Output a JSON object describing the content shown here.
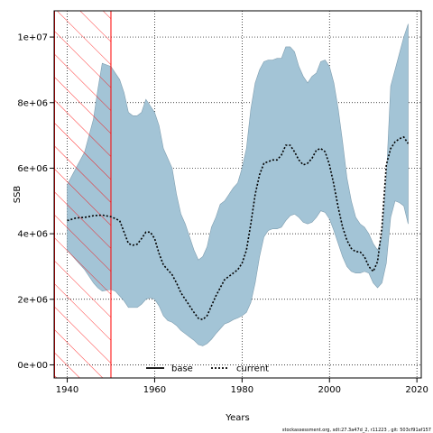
{
  "chart_data": {
    "type": "area",
    "xlabel": "Years",
    "ylabel": "SSB",
    "xlim": [
      1937,
      2021
    ],
    "ylim": [
      -400000,
      10800000
    ],
    "x_ticks": [
      1940,
      1960,
      1980,
      2000,
      2020
    ],
    "x_tick_labels": [
      "1940",
      "1960",
      "1980",
      "2000",
      "2020"
    ],
    "y_ticks": [
      0,
      2000000,
      4000000,
      6000000,
      8000000,
      10000000
    ],
    "y_tick_labels": [
      "0e+00",
      "2e+06",
      "4e+06",
      "6e+06",
      "8e+06",
      "1e+07"
    ],
    "grid": true,
    "hatched_region": {
      "x_from": 1937,
      "x_to": 1950,
      "color": "#ff0000"
    },
    "band_color": "#a3c4d6",
    "band": {
      "x": [
        1940,
        1942,
        1944,
        1946,
        1947,
        1948,
        1950,
        1951,
        1952,
        1953,
        1954,
        1955,
        1956,
        1957,
        1958,
        1959,
        1960,
        1961,
        1962,
        1963,
        1964,
        1965,
        1966,
        1967,
        1968,
        1969,
        1970,
        1971,
        1972,
        1973,
        1974,
        1975,
        1976,
        1977,
        1978,
        1979,
        1980,
        1981,
        1982,
        1983,
        1984,
        1985,
        1986,
        1987,
        1988,
        1989,
        1990,
        1991,
        1992,
        1993,
        1994,
        1995,
        1996,
        1997,
        1998,
        1999,
        2000,
        2001,
        2002,
        2003,
        2004,
        2005,
        2006,
        2007,
        2008,
        2009,
        2010,
        2011,
        2012,
        2013,
        2014,
        2015,
        2016,
        2017,
        2018
      ],
      "lower": [
        3500000,
        3200000,
        2900000,
        2500000,
        2350000,
        2250000,
        2300000,
        2250000,
        2100000,
        1950000,
        1750000,
        1750000,
        1750000,
        1850000,
        2000000,
        2050000,
        2000000,
        1800000,
        1500000,
        1350000,
        1300000,
        1200000,
        1050000,
        950000,
        850000,
        750000,
        620000,
        580000,
        650000,
        780000,
        950000,
        1100000,
        1250000,
        1300000,
        1380000,
        1430000,
        1500000,
        1600000,
        1900000,
        2500000,
        3300000,
        3900000,
        4100000,
        4150000,
        4150000,
        4200000,
        4400000,
        4550000,
        4600000,
        4500000,
        4350000,
        4300000,
        4350000,
        4500000,
        4700000,
        4650000,
        4450000,
        4100000,
        3700000,
        3300000,
        3000000,
        2850000,
        2800000,
        2800000,
        2850000,
        2800000,
        2500000,
        2350000,
        2500000,
        3100000,
        4500000,
        5000000,
        4950000,
        4850000,
        4300000
      ],
      "upper": [
        5500000,
        6000000,
        6500000,
        7500000,
        8400000,
        9200000,
        9100000,
        8900000,
        8700000,
        8300000,
        7700000,
        7600000,
        7600000,
        7700000,
        8100000,
        7900000,
        7700000,
        7300000,
        6600000,
        6300000,
        6000000,
        5200000,
        4600000,
        4300000,
        3900000,
        3500000,
        3200000,
        3300000,
        3600000,
        4200000,
        4500000,
        4900000,
        5000000,
        5200000,
        5400000,
        5550000,
        6000000,
        6600000,
        7800000,
        8600000,
        9000000,
        9250000,
        9300000,
        9300000,
        9350000,
        9350000,
        9700000,
        9700000,
        9550000,
        9100000,
        8800000,
        8600000,
        8800000,
        8900000,
        9250000,
        9300000,
        9100000,
        8600000,
        7800000,
        6800000,
        5700000,
        5000000,
        4500000,
        4300000,
        4200000,
        4000000,
        3700000,
        3500000,
        3900000,
        5700000,
        8500000,
        9000000,
        9500000,
        10000000,
        10400000
      ]
    },
    "series": [
      {
        "name": "base",
        "color": "#000000",
        "style": "solid",
        "x": [],
        "y": []
      },
      {
        "name": "current",
        "color": "#000000",
        "style": "dotted",
        "x": [
          1940,
          1942,
          1944,
          1946,
          1948,
          1950,
          1952,
          1953,
          1954,
          1955,
          1956,
          1957,
          1958,
          1959,
          1960,
          1961,
          1962,
          1963,
          1964,
          1965,
          1966,
          1967,
          1968,
          1969,
          1970,
          1971,
          1972,
          1973,
          1974,
          1975,
          1976,
          1977,
          1978,
          1979,
          1980,
          1981,
          1982,
          1983,
          1984,
          1985,
          1986,
          1987,
          1988,
          1989,
          1990,
          1991,
          1992,
          1993,
          1994,
          1995,
          1996,
          1997,
          1998,
          1999,
          2000,
          2001,
          2002,
          2003,
          2004,
          2005,
          2006,
          2007,
          2008,
          2009,
          2010,
          2011,
          2012,
          2013,
          2014,
          2015,
          2016,
          2017,
          2018
        ],
        "y": [
          4400000,
          4480000,
          4500000,
          4550000,
          4570000,
          4520000,
          4400000,
          4050000,
          3700000,
          3650000,
          3680000,
          3850000,
          4050000,
          4050000,
          3850000,
          3400000,
          3050000,
          2900000,
          2750000,
          2500000,
          2200000,
          2000000,
          1800000,
          1600000,
          1420000,
          1380000,
          1500000,
          1800000,
          2100000,
          2350000,
          2600000,
          2700000,
          2800000,
          2900000,
          3100000,
          3500000,
          4300000,
          5200000,
          5800000,
          6150000,
          6200000,
          6250000,
          6250000,
          6400000,
          6700000,
          6700000,
          6500000,
          6250000,
          6100000,
          6150000,
          6300000,
          6550000,
          6600000,
          6500000,
          6100000,
          5500000,
          4800000,
          4200000,
          3800000,
          3550000,
          3450000,
          3450000,
          3300000,
          3000000,
          2850000,
          3150000,
          4200000,
          6100000,
          6600000,
          6800000,
          6900000,
          6950000,
          6750000
        ]
      }
    ],
    "legend": {
      "placement": "bottom-center",
      "entries": [
        "base",
        "current"
      ]
    }
  },
  "footer": {
    "text": "stockassessment.org, sdt:27.3a47d_2, r11223 , git: 503cf91af157"
  }
}
